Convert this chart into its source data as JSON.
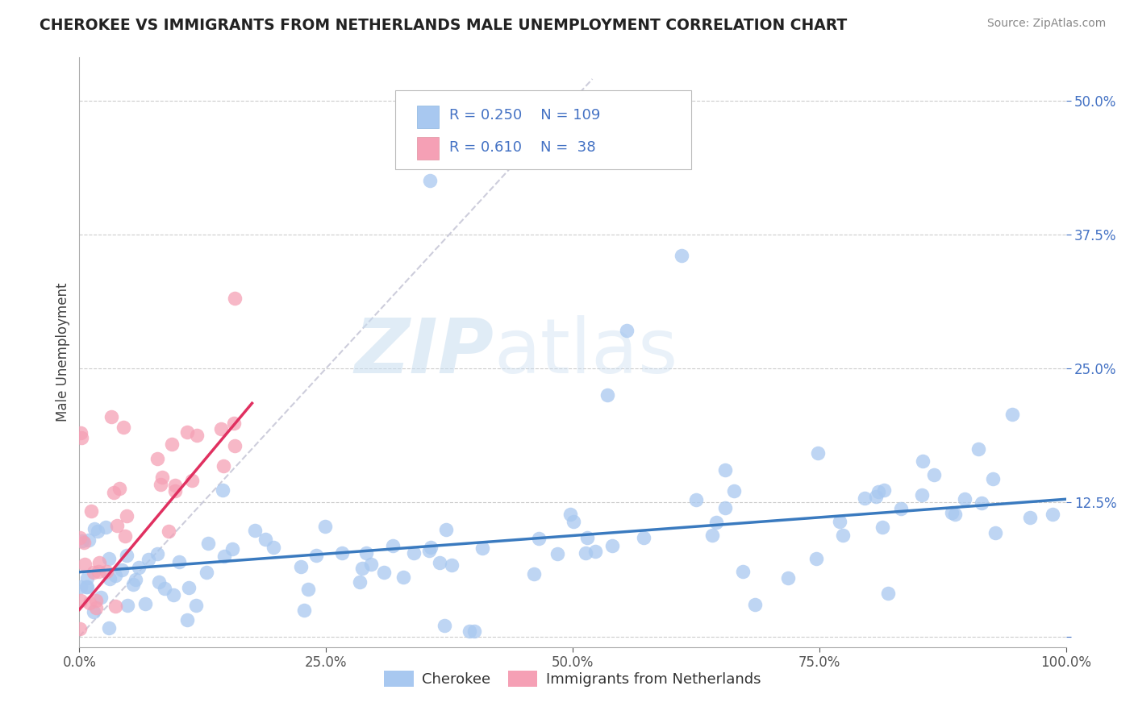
{
  "title": "CHEROKEE VS IMMIGRANTS FROM NETHERLANDS MALE UNEMPLOYMENT CORRELATION CHART",
  "source": "Source: ZipAtlas.com",
  "ylabel": "Male Unemployment",
  "series1_label": "Cherokee",
  "series2_label": "Immigrants from Netherlands",
  "series1_R": 0.25,
  "series1_N": 109,
  "series2_R": 0.61,
  "series2_N": 38,
  "series1_color": "#a8c8f0",
  "series1_line_color": "#3a7abf",
  "series2_color": "#f5a0b5",
  "series2_line_color": "#e03060",
  "diagonal_color": "#c8c8d8",
  "background_color": "#ffffff",
  "grid_color": "#cccccc",
  "watermark_zip": "ZIP",
  "watermark_atlas": "atlas",
  "xlim": [
    0.0,
    1.0
  ],
  "ylim": [
    -0.01,
    0.54
  ],
  "xticks": [
    0.0,
    0.25,
    0.5,
    0.75,
    1.0
  ],
  "xtick_labels": [
    "0.0%",
    "25.0%",
    "50.0%",
    "75.0%",
    "100.0%"
  ],
  "yticks": [
    0.0,
    0.125,
    0.25,
    0.375,
    0.5
  ],
  "ytick_labels": [
    "",
    "12.5%",
    "25.0%",
    "37.5%",
    "50.0%"
  ],
  "legend_R1": "R = 0.250",
  "legend_N1": "N = 109",
  "legend_R2": "R = 0.610",
  "legend_N2": "N =  38"
}
